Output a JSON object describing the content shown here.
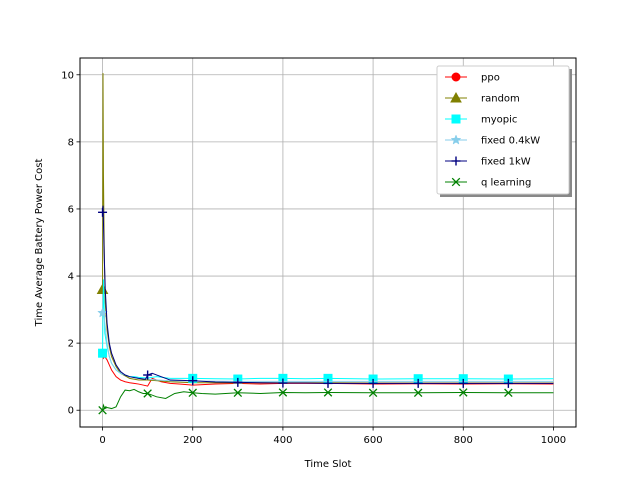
{
  "chart_data": {
    "type": "line",
    "title": "",
    "xlabel": "Time Slot",
    "ylabel": "Time Average Battery Power Cost",
    "xlim": [
      -50,
      1050
    ],
    "ylim": [
      -0.5,
      10.5
    ],
    "xticks": [
      0,
      200,
      400,
      600,
      800,
      1000
    ],
    "yticks": [
      0,
      2,
      4,
      6,
      8,
      10
    ],
    "grid": true,
    "legend_position": "top-right",
    "series": [
      {
        "name": "ppo",
        "color": "#ff0000",
        "marker": "circle",
        "x": [
          0,
          2,
          5,
          10,
          15,
          20,
          30,
          40,
          50,
          60,
          70,
          80,
          90,
          100,
          110,
          130,
          150,
          170,
          200,
          250,
          300,
          350,
          400,
          500,
          600,
          700,
          800,
          900,
          1000
        ],
        "y": [
          1.7,
          1.55,
          1.6,
          1.5,
          1.35,
          1.2,
          1.0,
          0.9,
          0.85,
          0.82,
          0.8,
          0.78,
          0.75,
          0.72,
          0.95,
          0.85,
          0.8,
          0.78,
          0.75,
          0.78,
          0.8,
          0.78,
          0.8,
          0.8,
          0.78,
          0.79,
          0.78,
          0.79,
          0.78
        ],
        "marker_x": [],
        "marker_y": []
      },
      {
        "name": "random",
        "color": "#808000",
        "marker": "triangle",
        "x": [
          0,
          1,
          2,
          4,
          6,
          10,
          15,
          20,
          30,
          40,
          60,
          80,
          100,
          150,
          200,
          300,
          400,
          500,
          600,
          700,
          800,
          900,
          1000
        ],
        "y": [
          3.6,
          10.05,
          7.0,
          4.5,
          3.2,
          2.4,
          1.9,
          1.6,
          1.3,
          1.1,
          0.95,
          0.9,
          0.9,
          0.85,
          0.82,
          0.82,
          0.82,
          0.82,
          0.81,
          0.81,
          0.81,
          0.81,
          0.81
        ],
        "marker_x": [
          0
        ],
        "marker_y": [
          3.6
        ]
      },
      {
        "name": "myopic",
        "color": "#00ffff",
        "marker": "square",
        "x": [
          0,
          2,
          5,
          10,
          15,
          20,
          30,
          40,
          50,
          60,
          70,
          80,
          90,
          100,
          120,
          150,
          200,
          250,
          300,
          350,
          400,
          450,
          500,
          600,
          700,
          800,
          900,
          1000
        ],
        "y": [
          1.7,
          3.9,
          2.3,
          1.9,
          1.6,
          1.4,
          1.2,
          1.1,
          1.05,
          1.0,
          1.0,
          0.98,
          0.97,
          0.96,
          1.0,
          0.95,
          0.95,
          0.94,
          0.93,
          0.95,
          0.95,
          0.94,
          0.95,
          0.93,
          0.94,
          0.94,
          0.93,
          0.94
        ],
        "marker_x": [
          0,
          200,
          300,
          400,
          500,
          600,
          700,
          800,
          900
        ],
        "marker_y": [
          1.7,
          0.95,
          0.93,
          0.95,
          0.95,
          0.93,
          0.94,
          0.94,
          0.93
        ]
      },
      {
        "name": "fixed 0.4kW",
        "color": "#87ceeb",
        "marker": "star",
        "x": [
          0,
          2,
          5,
          10,
          15,
          20,
          30,
          40,
          60,
          80,
          100,
          120,
          150,
          200,
          300,
          400,
          500,
          600,
          700,
          800,
          900,
          1000
        ],
        "y": [
          2.9,
          3.0,
          2.6,
          2.0,
          1.6,
          1.4,
          1.2,
          1.1,
          1.0,
          0.95,
          0.93,
          0.9,
          0.88,
          0.87,
          0.86,
          0.86,
          0.86,
          0.86,
          0.86,
          0.86,
          0.86,
          0.86
        ],
        "marker_x": [
          0
        ],
        "marker_y": [
          2.9
        ]
      },
      {
        "name": "fixed 1kW",
        "color": "#000080",
        "marker": "plus",
        "x": [
          0,
          1,
          2,
          4,
          6,
          10,
          15,
          20,
          30,
          40,
          50,
          60,
          80,
          95,
          100,
          110,
          130,
          150,
          200,
          250,
          300,
          350,
          400,
          450,
          500,
          600,
          700,
          800,
          900,
          1000
        ],
        "y": [
          5.9,
          6.1,
          5.6,
          4.5,
          3.6,
          2.6,
          2.0,
          1.7,
          1.35,
          1.15,
          1.05,
          1.0,
          0.95,
          0.92,
          1.05,
          1.1,
          1.0,
          0.9,
          0.88,
          0.84,
          0.83,
          0.82,
          0.81,
          0.81,
          0.8,
          0.8,
          0.8,
          0.8,
          0.8,
          0.8
        ],
        "marker_x": [
          0,
          100,
          200,
          300,
          400,
          500,
          600,
          700,
          800,
          900
        ],
        "marker_y": [
          5.9,
          1.05,
          0.88,
          0.83,
          0.81,
          0.8,
          0.8,
          0.8,
          0.8,
          0.8
        ]
      },
      {
        "name": "q learning",
        "color": "#008000",
        "marker": "x",
        "x": [
          0,
          2,
          5,
          10,
          20,
          30,
          40,
          50,
          60,
          70,
          80,
          90,
          100,
          120,
          140,
          160,
          180,
          200,
          220,
          250,
          300,
          350,
          400,
          450,
          500,
          600,
          700,
          800,
          900,
          1000
        ],
        "y": [
          0.0,
          0.15,
          0.05,
          0.08,
          0.05,
          0.1,
          0.4,
          0.6,
          0.58,
          0.62,
          0.55,
          0.5,
          0.5,
          0.4,
          0.35,
          0.5,
          0.55,
          0.52,
          0.5,
          0.48,
          0.52,
          0.5,
          0.53,
          0.52,
          0.53,
          0.52,
          0.52,
          0.53,
          0.52,
          0.52
        ],
        "marker_x": [
          0,
          100,
          200,
          300,
          400,
          500,
          600,
          700,
          800,
          900
        ],
        "marker_y": [
          0.0,
          0.5,
          0.52,
          0.52,
          0.53,
          0.53,
          0.52,
          0.52,
          0.53,
          0.52
        ]
      }
    ]
  }
}
